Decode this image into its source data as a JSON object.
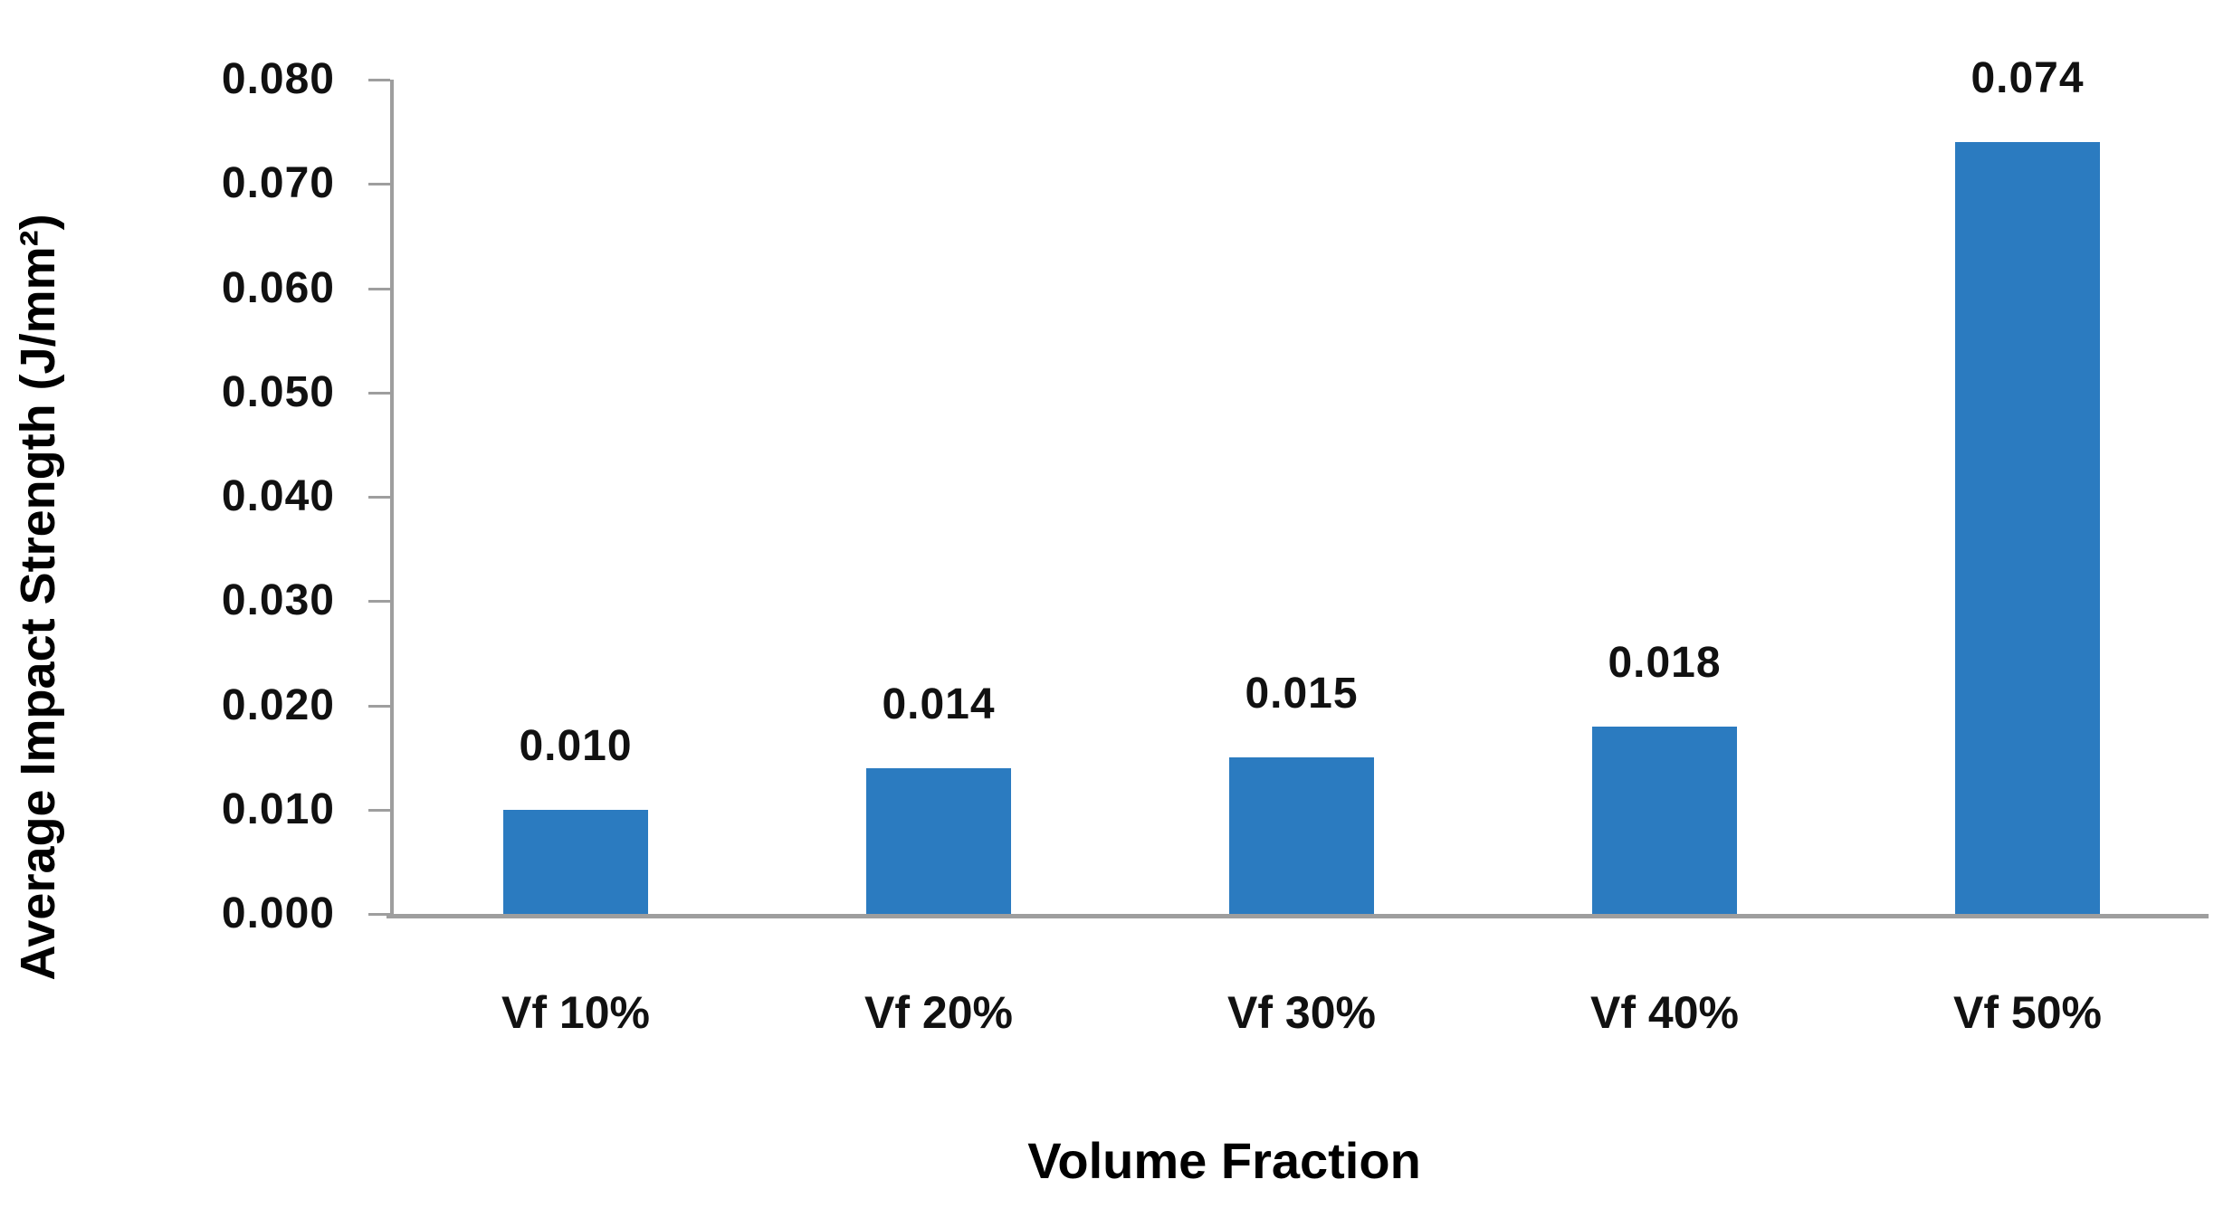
{
  "chart_data": {
    "type": "bar",
    "title": "",
    "xlabel": "Volume Fraction",
    "ylabel": "Average Impact Strength (J/mm²)",
    "categories": [
      "Vf 10%",
      "Vf 20%",
      "Vf 30%",
      "Vf 40%",
      "Vf 50%"
    ],
    "values": [
      0.01,
      0.014,
      0.015,
      0.018,
      0.074
    ],
    "data_labels": [
      "0.010",
      "0.014",
      "0.015",
      "0.018",
      "0.074"
    ],
    "ylim": [
      0,
      0.08
    ],
    "ytick_step": 0.01,
    "ytick_labels": [
      "0.000",
      "0.010",
      "0.020",
      "0.030",
      "0.040",
      "0.050",
      "0.060",
      "0.070",
      "0.080"
    ],
    "grid": false,
    "legend": false,
    "colors": {
      "bar": "#2b7bc0",
      "axis": "#9e9e9e",
      "text": "#111111",
      "background": "#ffffff"
    }
  }
}
